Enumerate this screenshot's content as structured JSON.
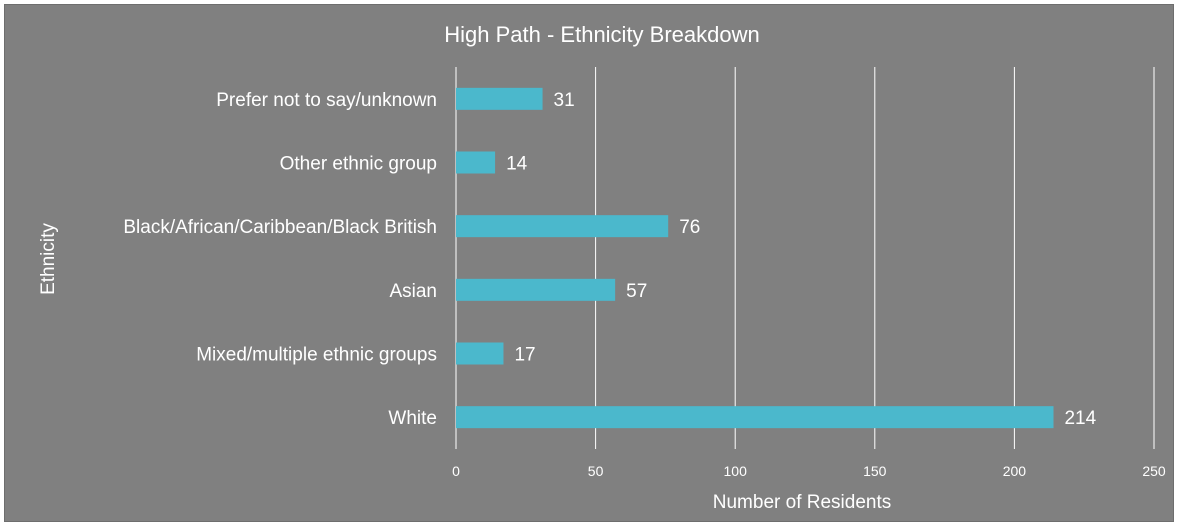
{
  "chart_data": {
    "type": "bar",
    "orientation": "horizontal",
    "title": "High Path - Ethnicity Breakdown",
    "xlabel": "Number of Residents",
    "ylabel": "Ethnicity",
    "categories": [
      "Prefer not to say/unknown",
      "Other ethnic group",
      "Black/African/Caribbean/Black British",
      "Asian",
      "Mixed/multiple ethnic groups",
      "White"
    ],
    "values": [
      31,
      14,
      76,
      57,
      17,
      214
    ],
    "xlim": [
      0,
      250
    ],
    "xticks": [
      0,
      50,
      100,
      150,
      200,
      250
    ],
    "grid": "vertical",
    "legend": "none",
    "colors": {
      "background": "#808080",
      "bar": "#4bb8cc",
      "text": "#ffffff",
      "grid": "#ffffff"
    }
  }
}
